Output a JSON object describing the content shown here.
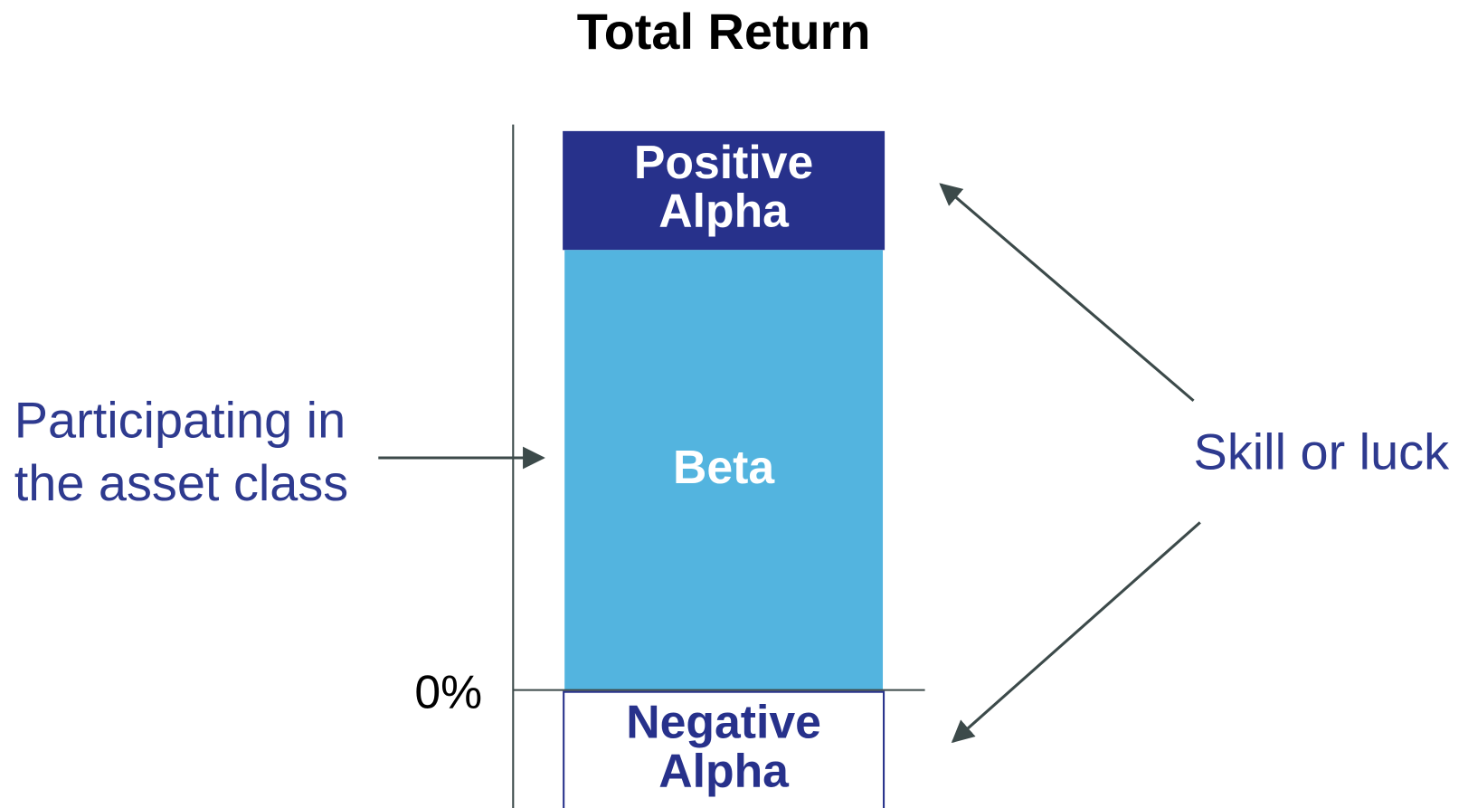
{
  "title": "Total Return",
  "axis": {
    "zero_label": "0%"
  },
  "segments": [
    {
      "lines": [
        "Positive",
        "Alpha"
      ]
    },
    {
      "lines": [
        "Beta"
      ]
    },
    {
      "lines": [
        "Negative",
        "Alpha"
      ]
    }
  ],
  "annotations": [
    {
      "lines": [
        "Participating in",
        "the asset class"
      ]
    },
    {
      "lines": [
        "Skill or luck"
      ]
    }
  ]
}
